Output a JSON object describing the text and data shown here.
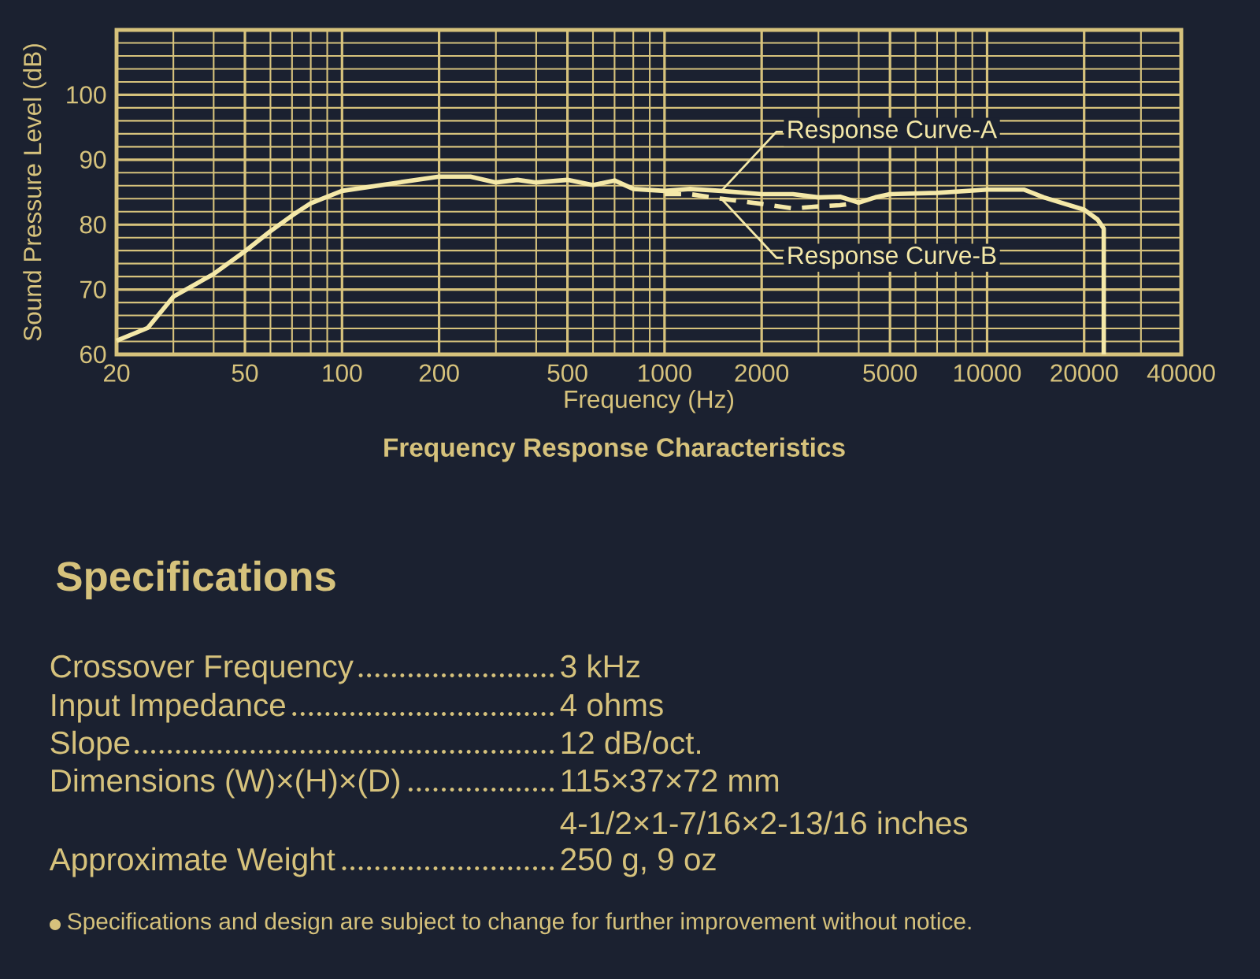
{
  "chart_data": {
    "type": "line",
    "title": "Frequency Response Characteristics",
    "xlabel": "Frequency (Hz)",
    "ylabel": "Sound Pressure Level (dB)",
    "xlim": [
      20,
      40000
    ],
    "ylim": [
      60,
      110
    ],
    "log": "x",
    "grid": true,
    "marker": "none",
    "xticks": [
      20,
      50,
      100,
      200,
      500,
      1000,
      2000,
      5000,
      10000,
      20000,
      40000
    ],
    "yticks": [
      60,
      70,
      80,
      90,
      100
    ],
    "series": [
      {
        "color": "#f4e8a8",
        "line_style": "solid",
        "x": [
          20,
          25,
          30,
          40,
          50,
          60,
          70,
          80,
          100,
          150,
          200,
          250,
          300,
          350,
          400,
          500,
          600,
          700,
          800,
          1000,
          1200,
          1500,
          2000,
          2500,
          3000,
          3500,
          4000,
          4500,
          5000,
          7000,
          10000,
          13000,
          15000,
          20000,
          22000,
          23000,
          23000
        ],
        "values": [
          62.1,
          64.1,
          68.9,
          72.4,
          75.9,
          79.0,
          81.4,
          83.3,
          85.2,
          86.5,
          87.4,
          87.4,
          86.5,
          86.9,
          86.5,
          86.9,
          86.1,
          86.8,
          85.5,
          85.2,
          85.5,
          85.2,
          84.7,
          84.7,
          84.2,
          84.3,
          83.4,
          84.2,
          84.7,
          84.9,
          85.4,
          85.4,
          84.2,
          82.3,
          80.8,
          79.4,
          60
        ]
      },
      {
        "color": "#f4e8a8",
        "line_style": "dashed",
        "x": [
          1000,
          1200,
          1500,
          2000,
          2500,
          3000,
          3500,
          4000
        ],
        "values": [
          84.7,
          84.7,
          84.0,
          83.2,
          82.5,
          82.8,
          83.0,
          83.4
        ]
      }
    ],
    "annotations": [
      {
        "text": "Response Curve-A",
        "x": 1500,
        "y": 85.2
      },
      {
        "text": "Response Curve-B",
        "x": 1500,
        "y": 84.0
      },
      "Specifications",
      "Crossover Frequency",
      "3 kHz",
      "Input Impedance",
      "4 ohms",
      "Slope",
      "12 dB/oct.",
      "Dimensions (W)×(H)×(D)",
      "115×37×72 mm",
      "4-1/2×1-7/16×2-13/16 inches",
      "Approximate Weight",
      "250 g, 9 oz",
      "Specifications and design are subject to change for further improvement without notice."
    ]
  }
}
